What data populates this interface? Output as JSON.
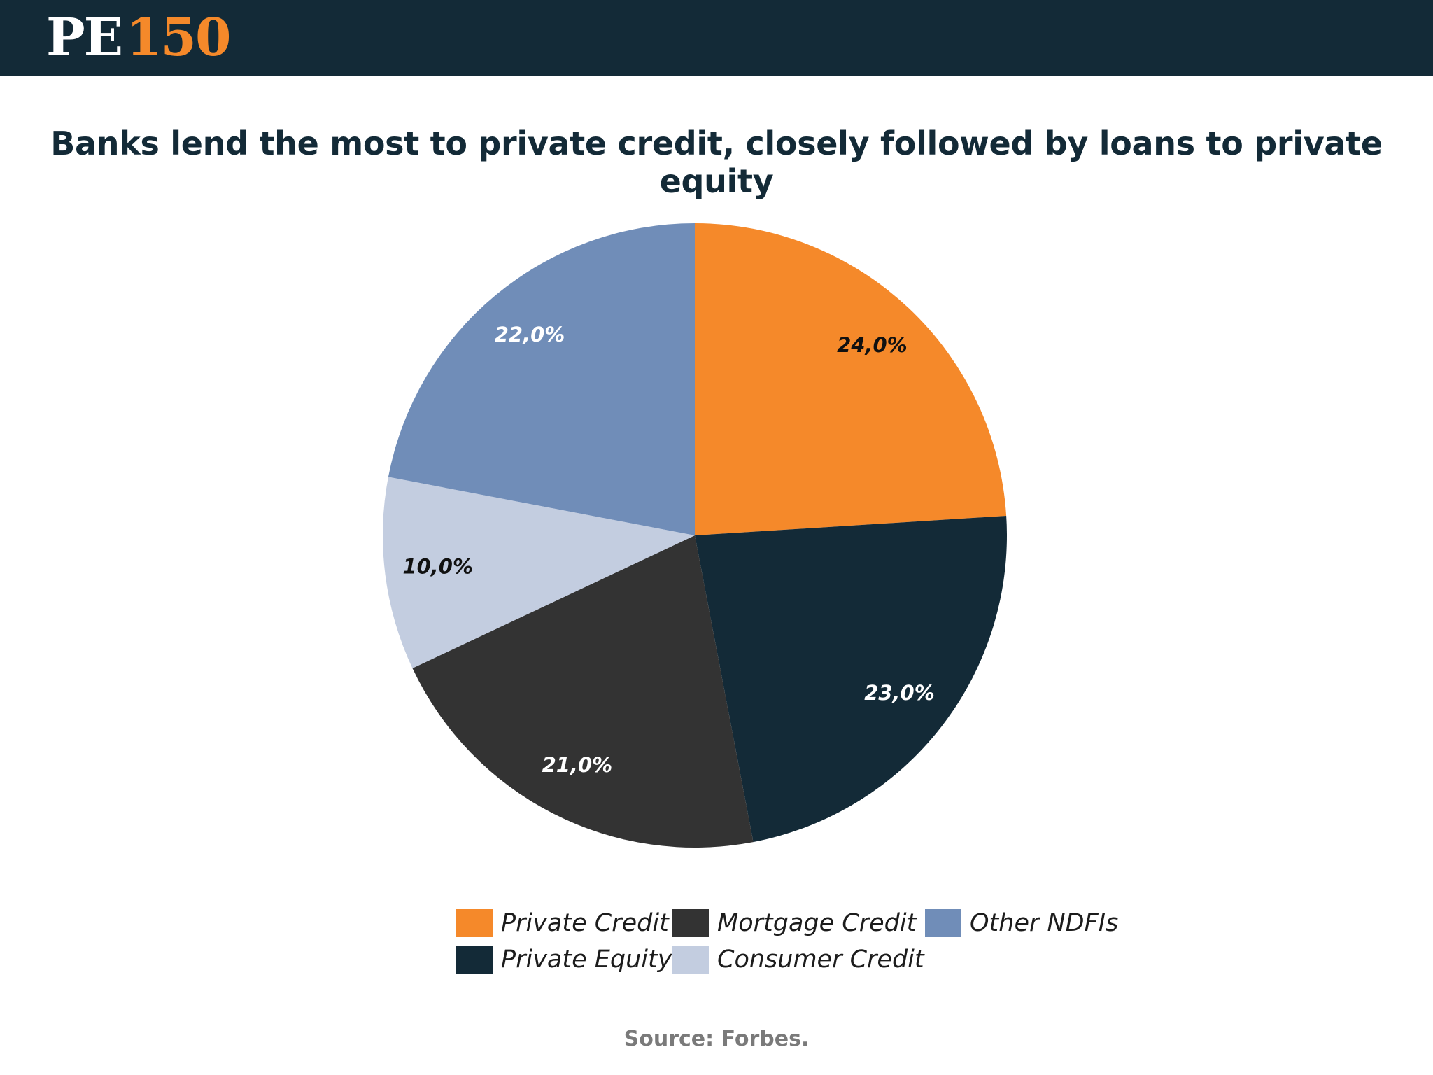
{
  "header": {
    "logo_letters": "PE",
    "logo_number": "150"
  },
  "chart_data": {
    "type": "pie",
    "title": "Banks lend the most to private credit, closely followed by loans to private equity",
    "slices": [
      {
        "label": "Private Credit",
        "value": 24.0,
        "display": "24,0%",
        "color": "#f5892a",
        "text_color": "#111111"
      },
      {
        "label": "Private Equity",
        "value": 23.0,
        "display": "23,0%",
        "color": "#132a37",
        "text_color": "#ffffff"
      },
      {
        "label": "Mortgage Credit",
        "value": 21.0,
        "display": "21,0%",
        "color": "#333333",
        "text_color": "#ffffff"
      },
      {
        "label": "Consumer Credit",
        "value": 10.0,
        "display": "10,0%",
        "color": "#c3cde0",
        "text_color": "#111111"
      },
      {
        "label": "Other NDFIs",
        "value": 22.0,
        "display": "22,0%",
        "color": "#708db8",
        "text_color": "#ffffff"
      }
    ],
    "start": "12 o'clock",
    "direction": "clockwise",
    "legend_position": "bottom"
  },
  "legend": {
    "items": [
      {
        "label": "Private Credit",
        "color": "#f5892a"
      },
      {
        "label": "Mortgage Credit",
        "color": "#333333"
      },
      {
        "label": "Other NDFIs",
        "color": "#708db8"
      },
      {
        "label": "Private Equity",
        "color": "#132a37"
      },
      {
        "label": "Consumer Credit",
        "color": "#c3cde0"
      }
    ]
  },
  "source": "Source: Forbes."
}
